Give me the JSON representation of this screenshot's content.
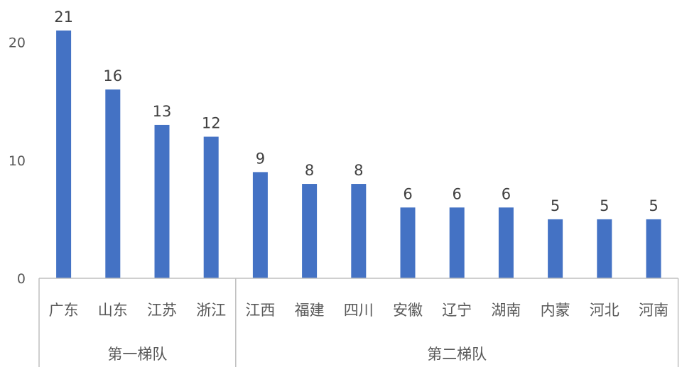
{
  "chart_data": {
    "type": "bar",
    "title": "",
    "xlabel": "",
    "ylabel": "",
    "ylim": [
      0,
      21
    ],
    "yticks": [
      0,
      10,
      20
    ],
    "grid": false,
    "legend": "none",
    "bar_color": "#4472C4",
    "categories": [
      "广东",
      "山东",
      "江苏",
      "浙江",
      "江西",
      "福建",
      "四川",
      "安徽",
      "辽宁",
      "湖南",
      "内蒙",
      "河北",
      "河南"
    ],
    "values": [
      21,
      16,
      13,
      12,
      9,
      8,
      8,
      6,
      6,
      6,
      5,
      5,
      5
    ],
    "data_labels": [
      "21",
      "16",
      "13",
      "12",
      "9",
      "8",
      "8",
      "6",
      "6",
      "6",
      "5",
      "5",
      "5"
    ],
    "groups": [
      {
        "label": "第一梯队",
        "count": 4
      },
      {
        "label": "第二梯队",
        "count": 9
      }
    ]
  }
}
